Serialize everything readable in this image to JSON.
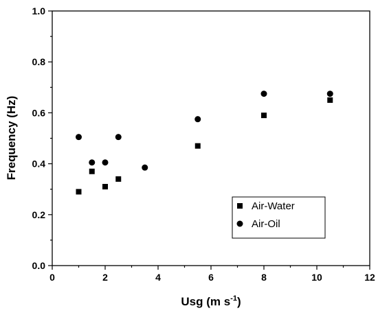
{
  "chart_data": {
    "type": "scatter",
    "xlabel_main": "Usg (m s",
    "xlabel_sup": "-1",
    "xlabel_tail": ")",
    "ylabel": "Frequency (Hz)",
    "xlim": [
      0,
      12
    ],
    "ylim": [
      0.0,
      1.0
    ],
    "xticks": [
      "0",
      "2",
      "4",
      "6",
      "8",
      "10",
      "12"
    ],
    "yticks": [
      "0.0",
      "0.2",
      "0.4",
      "0.6",
      "0.8",
      "1.0"
    ],
    "grid": false,
    "legend_position": "lower-right",
    "series": [
      {
        "name": "Air-Water",
        "marker": "square",
        "color": "#000000",
        "points": [
          {
            "x": 1.0,
            "y": 0.29
          },
          {
            "x": 1.5,
            "y": 0.37
          },
          {
            "x": 2.0,
            "y": 0.31
          },
          {
            "x": 2.5,
            "y": 0.34
          },
          {
            "x": 5.5,
            "y": 0.47
          },
          {
            "x": 8.0,
            "y": 0.59
          },
          {
            "x": 10.5,
            "y": 0.65
          }
        ]
      },
      {
        "name": "Air-Oil",
        "marker": "circle",
        "color": "#000000",
        "points": [
          {
            "x": 1.0,
            "y": 0.505
          },
          {
            "x": 1.5,
            "y": 0.405
          },
          {
            "x": 2.0,
            "y": 0.405
          },
          {
            "x": 2.5,
            "y": 0.505
          },
          {
            "x": 3.5,
            "y": 0.385
          },
          {
            "x": 5.5,
            "y": 0.575
          },
          {
            "x": 8.0,
            "y": 0.675
          },
          {
            "x": 10.5,
            "y": 0.675
          }
        ]
      }
    ]
  }
}
